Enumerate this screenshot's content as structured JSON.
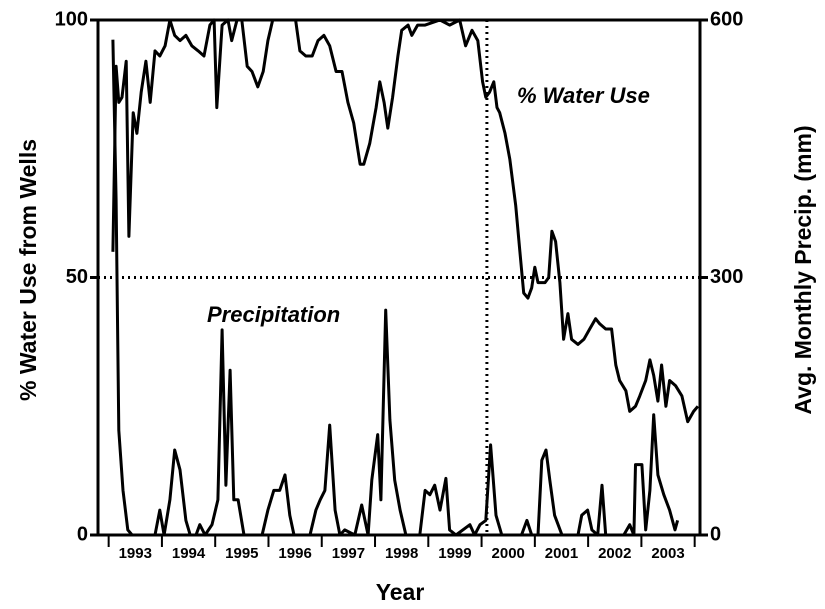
{
  "chart_data": {
    "type": "line",
    "x_label": "Year",
    "y_label": "% Water Use from Wells",
    "y2_label": "Avg. Monthly Precip. (mm)",
    "annotations": [
      "% Water Use",
      "Precipitation"
    ],
    "xlim": [
      1992.8,
      2004.1
    ],
    "xticks": [
      {
        "value": 1993.5,
        "label": "1993"
      },
      {
        "value": 1994.5,
        "label": "1994"
      },
      {
        "value": 1995.5,
        "label": "1995"
      },
      {
        "value": 1996.5,
        "label": "1996"
      },
      {
        "value": 1997.5,
        "label": "1997"
      },
      {
        "value": 1998.5,
        "label": "1998"
      },
      {
        "value": 1999.5,
        "label": "1999"
      },
      {
        "value": 2000.5,
        "label": "2000"
      },
      {
        "value": 2001.5,
        "label": "2001"
      },
      {
        "value": 2002.5,
        "label": "2002"
      },
      {
        "value": 2003.5,
        "label": "2003"
      }
    ],
    "xtick_marks": [
      1993,
      1994,
      1995,
      1996,
      1997,
      1998,
      1999,
      2000,
      2001,
      2002,
      2003,
      2004
    ],
    "ylim": [
      0,
      100
    ],
    "yticks": [
      0,
      50,
      100
    ],
    "y2lim": [
      0,
      600
    ],
    "y2ticks": [
      0,
      300,
      600
    ],
    "hline": 50,
    "vline": 2000.1,
    "series": [
      {
        "color": "#000000",
        "x": [
          1993.08,
          1993.14,
          1993.19,
          1993.25,
          1993.33,
          1993.38,
          1993.46,
          1993.53,
          1993.61,
          1993.7,
          1993.78,
          1993.87,
          1993.96,
          1994.06,
          1994.15,
          1994.24,
          1994.34,
          1994.45,
          1994.56,
          1994.68,
          1994.79,
          1994.9,
          1994.98,
          1995.03,
          1995.13,
          1995.24,
          1995.31,
          1995.41,
          1995.5,
          1995.6,
          1995.69,
          1995.8,
          1995.9,
          1995.99,
          1996.08,
          1996.21,
          1996.4,
          1996.51,
          1996.59,
          1996.7,
          1996.82,
          1996.93,
          1997.04,
          1997.15,
          1997.27,
          1997.38,
          1997.49,
          1997.6,
          1997.72,
          1997.79,
          1997.9,
          1998.02,
          1998.09,
          1998.17,
          1998.24,
          1998.33,
          1998.43,
          1998.5,
          1998.62,
          1998.69,
          1998.8,
          1998.94,
          1999.22,
          1999.4,
          1999.59,
          1999.7,
          1999.82,
          1999.93,
          2000.02,
          2000.08,
          2000.15,
          2000.23,
          2000.29,
          2000.34,
          2000.44,
          2000.53,
          2000.64,
          2000.72,
          2000.79,
          2000.87,
          2000.94,
          2001.0,
          2001.06,
          2001.19,
          2001.26,
          2001.32,
          2001.39,
          2001.47,
          2001.54,
          2001.62,
          2001.69,
          2001.81,
          2001.92,
          2002.03,
          2002.14,
          2002.22,
          2002.33,
          2002.44,
          2002.52,
          2002.59,
          2002.71,
          2002.78,
          2002.89,
          2002.97,
          2003.08,
          2003.16,
          2003.23,
          2003.31,
          2003.38,
          2003.46,
          2003.53,
          2003.64,
          2003.76,
          2003.87,
          2003.98,
          2004.06
        ],
        "values": [
          55,
          91,
          84,
          85,
          92,
          58,
          82,
          78,
          86,
          92,
          84,
          94,
          93,
          95,
          100,
          97,
          96,
          97,
          95,
          94,
          93,
          99,
          100,
          83,
          99,
          100,
          96,
          100,
          100,
          91,
          90,
          87,
          90,
          96,
          100,
          100,
          100,
          100,
          94,
          93,
          93,
          96,
          97,
          95,
          90,
          90,
          84,
          80,
          72,
          72,
          76,
          83,
          88,
          84,
          79,
          85,
          93,
          98,
          99,
          97,
          99,
          99,
          100,
          99,
          100,
          95,
          98,
          96,
          88,
          85,
          86,
          88,
          83,
          82,
          78,
          73,
          64,
          55,
          47,
          46,
          48,
          52,
          49,
          49,
          50,
          59,
          57,
          49,
          38,
          43,
          38,
          37,
          38,
          40,
          42,
          41,
          40,
          40,
          33,
          30,
          28,
          24,
          25,
          27,
          30,
          34,
          31,
          26,
          33,
          25,
          30,
          29,
          27,
          22,
          24,
          25
        ]
      },
      {
        "color": "#000000",
        "axis": "y2",
        "x": [
          1993.08,
          1993.14,
          1993.19,
          1993.27,
          1993.36,
          1993.44,
          1993.87,
          1993.96,
          1994.04,
          1994.15,
          1994.24,
          1994.34,
          1994.45,
          1994.53,
          1994.64,
          1994.71,
          1994.81,
          1994.94,
          1995.05,
          1995.13,
          1995.2,
          1995.28,
          1995.35,
          1995.43,
          1995.54,
          1995.88,
          1995.99,
          1996.1,
          1996.21,
          1996.31,
          1996.4,
          1996.48,
          1996.78,
          1996.89,
          1996.97,
          1997.06,
          1997.15,
          1997.25,
          1997.34,
          1997.43,
          1997.62,
          1997.75,
          1997.87,
          1997.94,
          1998.05,
          1998.11,
          1998.2,
          1998.28,
          1998.37,
          1998.47,
          1998.58,
          1998.84,
          1998.94,
          1999.03,
          1999.12,
          1999.22,
          1999.33,
          1999.4,
          1999.52,
          1999.78,
          1999.87,
          1999.97,
          2000.08,
          2000.17,
          2000.27,
          2000.38,
          2000.75,
          2000.85,
          2000.94,
          2001.06,
          2001.13,
          2001.21,
          2001.28,
          2001.37,
          2001.51,
          2001.81,
          2001.88,
          2001.99,
          2002.07,
          2002.18,
          2002.26,
          2002.33,
          2002.67,
          2002.78,
          2002.86,
          2002.89,
          2003.01,
          2003.08,
          2003.16,
          2003.23,
          2003.31,
          2003.42,
          2003.53,
          2003.63,
          2003.68
        ],
        "values": [
          577,
          390,
          122,
          52,
          6,
          0,
          0,
          29,
          0,
          41,
          99,
          76,
          17,
          0,
          0,
          12,
          0,
          12,
          41,
          239,
          58,
          192,
          41,
          41,
          0,
          0,
          29,
          52,
          52,
          70,
          23,
          0,
          0,
          29,
          41,
          52,
          128,
          29,
          0,
          6,
          0,
          35,
          0,
          64,
          117,
          41,
          262,
          134,
          64,
          29,
          0,
          0,
          52,
          47,
          58,
          29,
          66,
          6,
          0,
          12,
          0,
          12,
          17,
          105,
          23,
          0,
          0,
          17,
          0,
          0,
          87,
          99,
          64,
          23,
          0,
          0,
          23,
          29,
          6,
          0,
          58,
          0,
          0,
          12,
          0,
          82,
          82,
          6,
          52,
          140,
          70,
          47,
          29,
          6,
          17
        ]
      }
    ]
  }
}
